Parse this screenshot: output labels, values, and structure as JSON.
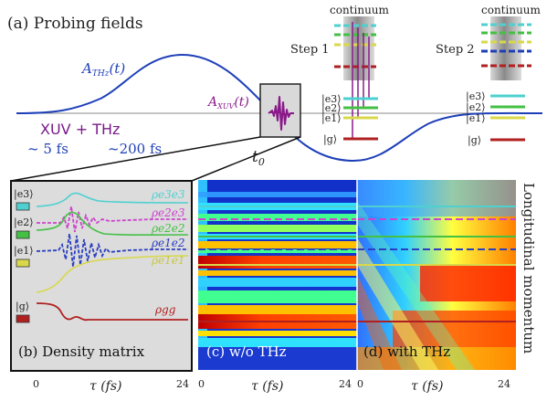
{
  "top": {
    "title": "(a) Probing fields",
    "a_thz": "A",
    "a_thz_sub": "THz",
    "a_thz_arg": "(t)",
    "a_xuv": "A",
    "a_xuv_sub": "XUV",
    "a_xuv_arg": "(t)",
    "xuv_thz": "XUV + THz",
    "dur_xuv": "~ 5 fs",
    "dur_thz": "~200 fs",
    "t0": "t",
    "t0_sub": "0",
    "step1": "Step 1",
    "step2": "Step 2",
    "continuum1": "continuum",
    "continuum2": "continuum",
    "levels": [
      "|e3⟩",
      "|e2⟩",
      "|e1⟩",
      "|g⟩"
    ],
    "colors": {
      "thz": "#1e3fb8",
      "xuv": "#8a1a8a",
      "e3": "#4fd0d0",
      "e2": "#44c044",
      "e1": "#d8d84a",
      "g": "#b02020"
    }
  },
  "panel_b": {
    "label": "(b) Density matrix",
    "levels": [
      "|e3⟩",
      "|e2⟩",
      "|e1⟩",
      "|g⟩"
    ],
    "curves": [
      {
        "name": "ρe3e3",
        "color": "#4fd0d0"
      },
      {
        "name": "ρe2e3",
        "color": "#cc44cc"
      },
      {
        "name": "ρe2e2",
        "color": "#44c044"
      },
      {
        "name": "ρe1e2",
        "color": "#2a3fc0"
      },
      {
        "name": "ρe1e1",
        "color": "#d8d84a"
      },
      {
        "name": "ρgg",
        "color": "#b02020"
      }
    ]
  },
  "panel_c": {
    "label": "(c) w/o THz"
  },
  "panel_d": {
    "label": "(d) with THz"
  },
  "axis": {
    "tau_label": "τ  (fs)",
    "ticks_b": [
      "0",
      "24"
    ],
    "ticks_c": [
      "0",
      "24"
    ],
    "ticks_d": [
      "0",
      "24"
    ],
    "right_label": "Longitudinal momentum"
  }
}
